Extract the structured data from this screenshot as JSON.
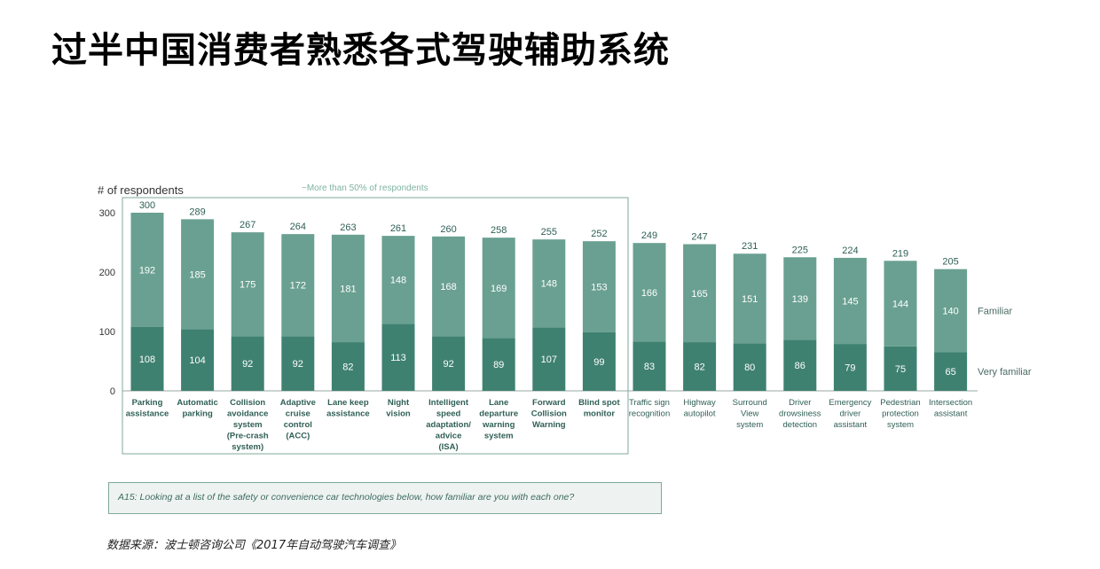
{
  "title": "过半中国消费者熟悉各式驾驶辅助系统",
  "source": "数据来源：波士顿咨询公司《2017年自动驾驶汽车调查》",
  "question": "A15: Looking at a list of the safety or convenience car technologies below, how familiar are you with each one?",
  "colors": {
    "very_familiar": "#3f8170",
    "familiar": "#6aa091",
    "frame": "#7fa898"
  },
  "chart_data": {
    "type": "bar",
    "stacked": true,
    "ylabel": "# of respondents",
    "annotation": "~More than 50% of respondents",
    "ylim": [
      0,
      300
    ],
    "yticks": [
      "0",
      "100",
      "200",
      "300"
    ],
    "categories": [
      [
        "Parking",
        "assistance"
      ],
      [
        "Automatic",
        "parking"
      ],
      [
        "Collision",
        "avoidance",
        "system",
        "(Pre-crash",
        "system)"
      ],
      [
        "Adaptive",
        "cruise",
        "control",
        "(ACC)"
      ],
      [
        "Lane keep",
        "assistance"
      ],
      [
        "Night",
        "vision"
      ],
      [
        "Intelligent",
        "speed",
        "adaptation/",
        "advice",
        "(ISA)"
      ],
      [
        "Lane",
        "departure",
        "warning",
        "system"
      ],
      [
        "Forward",
        "Collision",
        "Warning"
      ],
      [
        "Blind spot",
        "monitor"
      ],
      [
        "Traffic sign",
        "recognition"
      ],
      [
        "Highway",
        "autopilot"
      ],
      [
        "Surround",
        "View",
        "system"
      ],
      [
        "Driver",
        "drowsiness",
        "detection"
      ],
      [
        "Emergency",
        "driver",
        "assistant"
      ],
      [
        "Pedestrian",
        "protection",
        "system"
      ],
      [
        "Intersection",
        "assistant"
      ]
    ],
    "series": [
      {
        "name": "Very familiar",
        "values": [
          108,
          104,
          92,
          92,
          82,
          113,
          92,
          89,
          107,
          99,
          83,
          82,
          80,
          86,
          79,
          75,
          65
        ]
      },
      {
        "name": "Familiar",
        "values": [
          192,
          185,
          175,
          172,
          181,
          148,
          168,
          169,
          148,
          153,
          166,
          165,
          151,
          139,
          145,
          144,
          140
        ]
      }
    ],
    "totals": [
      300,
      289,
      267,
      264,
      263,
      261,
      260,
      258,
      255,
      252,
      249,
      247,
      231,
      225,
      224,
      219,
      205
    ],
    "legend_position": "right"
  }
}
